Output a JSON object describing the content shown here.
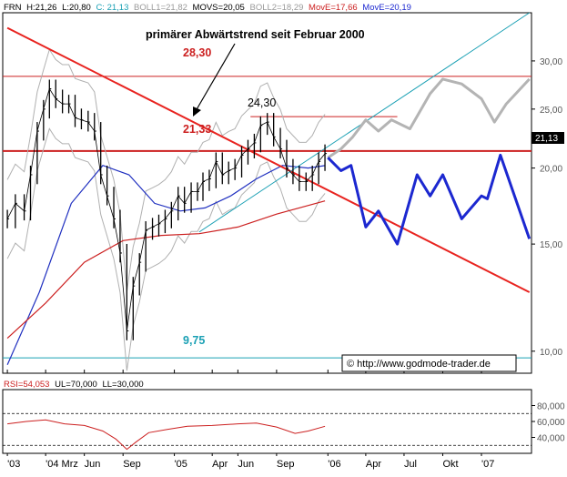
{
  "header": {
    "symbol": "FRN",
    "high": "H:21,26",
    "low": "L:20,80",
    "close": "C: 21,13",
    "boll1": "BOLL1=21,82",
    "movs": "MOVS=20,05",
    "boll2": "BOLL2=18,29",
    "move_a": "MovE=17,66",
    "move_b": "MovE=20,19"
  },
  "annotations": {
    "trend_title": "primärer Abwärtstrend seit Februar 2000",
    "level_2830": "28,30",
    "level_2133": "21,33",
    "level_2430": "24,30",
    "level_975": "9,75",
    "last_price": "21,13",
    "copyright": "© http://www.godmode-trader.de"
  },
  "rsi_header": {
    "rsi": "RSI=54,053",
    "ul": "UL=70,000",
    "ll": "LL=30,000"
  },
  "colors": {
    "trendline": "#e8231f",
    "level_line": "#cc2020",
    "blue_projection": "#1c28d0",
    "gray_projection": "#b4b4b4",
    "teal": "#1aa0b4",
    "ma_blue": "#2030c0",
    "ma_red": "#cc2020",
    "boll": "#b0b0b0"
  },
  "chart_data": [
    {
      "type": "line",
      "panel": "price",
      "scale": "log",
      "ylim": [
        9.2,
        36
      ],
      "y_ticks": [
        "30,00",
        "25,00",
        "20,00",
        "15,00",
        "10,00"
      ],
      "y_tick_values": [
        30,
        25,
        20,
        15,
        10
      ],
      "x_ticks": [
        "'03",
        "'04 Mrz",
        "Jun",
        "Sep",
        "'05",
        "Apr",
        "Jun",
        "Sep",
        "'06",
        "Apr",
        "Jul",
        "Okt",
        "'07"
      ],
      "x_tick_dates": [
        "2003-12-01",
        "2004-03-01",
        "2004-06-01",
        "2004-09-01",
        "2005-01-01",
        "2005-04-01",
        "2005-06-01",
        "2005-09-01",
        "2006-01-01",
        "2006-04-01",
        "2006-07-01",
        "2006-10-01",
        "2007-01-01"
      ],
      "horizontal_levels": [
        28.3,
        21.33,
        9.75
      ],
      "resistance_2430": {
        "value": 24.3,
        "from": "2005-07-01",
        "to": "2006-06-15"
      },
      "price_series": {
        "name": "FRN",
        "points": [
          [
            "2003-12-01",
            16.5
          ],
          [
            "2003-12-20",
            17.5
          ],
          [
            "2004-01-10",
            17.0
          ],
          [
            "2004-01-25",
            19.5
          ],
          [
            "2004-02-10",
            23.0
          ],
          [
            "2004-02-25",
            25.0
          ],
          [
            "2004-03-10",
            27.0
          ],
          [
            "2004-03-25",
            26.0
          ],
          [
            "2004-04-10",
            25.5
          ],
          [
            "2004-04-25",
            25.5
          ],
          [
            "2004-05-10",
            24.2
          ],
          [
            "2004-05-25",
            24.0
          ],
          [
            "2004-06-10",
            23.8
          ],
          [
            "2004-06-25",
            23.0
          ],
          [
            "2004-07-10",
            19.5
          ],
          [
            "2004-07-25",
            18.0
          ],
          [
            "2004-08-10",
            16.5
          ],
          [
            "2004-08-25",
            14.5
          ],
          [
            "2004-09-10",
            10.8
          ],
          [
            "2004-09-25",
            12.8
          ],
          [
            "2004-10-10",
            14.0
          ],
          [
            "2004-10-25",
            15.8
          ],
          [
            "2004-11-10",
            16.0
          ],
          [
            "2004-11-25",
            16.2
          ],
          [
            "2004-12-10",
            16.5
          ],
          [
            "2004-12-25",
            17.0
          ],
          [
            "2005-01-10",
            18.0
          ],
          [
            "2005-01-25",
            17.5
          ],
          [
            "2005-02-10",
            18.3
          ],
          [
            "2005-02-25",
            18.3
          ],
          [
            "2005-03-10",
            19.0
          ],
          [
            "2005-03-25",
            19.2
          ],
          [
            "2005-04-10",
            20.5
          ],
          [
            "2005-04-25",
            19.5
          ],
          [
            "2005-05-10",
            19.8
          ],
          [
            "2005-05-25",
            20.0
          ],
          [
            "2005-06-10",
            21.0
          ],
          [
            "2005-06-25",
            21.5
          ],
          [
            "2005-07-10",
            22.0
          ],
          [
            "2005-07-25",
            23.5
          ],
          [
            "2005-08-10",
            23.8
          ],
          [
            "2005-08-25",
            22.5
          ],
          [
            "2005-09-10",
            21.5
          ],
          [
            "2005-09-25",
            20.0
          ],
          [
            "2005-10-10",
            19.5
          ],
          [
            "2005-10-25",
            19.0
          ],
          [
            "2005-11-10",
            19.0
          ],
          [
            "2005-11-25",
            19.5
          ],
          [
            "2005-12-10",
            20.5
          ],
          [
            "2005-12-25",
            21.13
          ]
        ]
      },
      "moving_averages": [
        {
          "color": "blue",
          "points": [
            [
              "2003-12-01",
              9.5
            ],
            [
              "2004-02-15",
              12.5
            ],
            [
              "2004-05-01",
              17.5
            ],
            [
              "2004-07-15",
              20.2
            ],
            [
              "2004-09-15",
              19.5
            ],
            [
              "2004-11-15",
              17.5
            ],
            [
              "2005-01-15",
              17.0
            ],
            [
              "2005-03-15",
              17.2
            ],
            [
              "2005-05-15",
              18.0
            ],
            [
              "2005-07-15",
              19.2
            ],
            [
              "2005-09-15",
              20.2
            ],
            [
              "2005-11-15",
              20.0
            ],
            [
              "2005-12-25",
              20.19
            ]
          ]
        },
        {
          "color": "red",
          "points": [
            [
              "2003-12-01",
              10.5
            ],
            [
              "2004-03-01",
              12.0
            ],
            [
              "2004-06-01",
              14.0
            ],
            [
              "2004-09-01",
              15.2
            ],
            [
              "2004-12-01",
              15.5
            ],
            [
              "2005-03-01",
              15.6
            ],
            [
              "2005-06-01",
              16.0
            ],
            [
              "2005-09-01",
              16.8
            ],
            [
              "2005-12-25",
              17.66
            ]
          ]
        }
      ],
      "projection_blue": [
        [
          "2006-01-01",
          20.8
        ],
        [
          "2006-02-01",
          19.8
        ],
        [
          "2006-02-25",
          20.2
        ],
        [
          "2006-04-01",
          16.0
        ],
        [
          "2006-05-01",
          17.0
        ],
        [
          "2006-06-15",
          15.0
        ],
        [
          "2006-08-01",
          19.5
        ],
        [
          "2006-09-01",
          18.0
        ],
        [
          "2006-10-01",
          19.5
        ],
        [
          "2006-11-15",
          16.5
        ],
        [
          "2007-01-01",
          18.0
        ],
        [
          "2007-01-15",
          17.8
        ],
        [
          "2007-02-15",
          21.0
        ],
        [
          "2007-04-25",
          15.3
        ]
      ],
      "projection_gray": [
        [
          "2006-01-01",
          20.8
        ],
        [
          "2006-02-01",
          21.5
        ],
        [
          "2006-03-01",
          22.5
        ],
        [
          "2006-04-01",
          24.0
        ],
        [
          "2006-05-01",
          23.0
        ],
        [
          "2006-06-01",
          24.0
        ],
        [
          "2006-07-15",
          23.2
        ],
        [
          "2006-09-01",
          26.5
        ],
        [
          "2006-10-01",
          28.0
        ],
        [
          "2006-11-15",
          27.5
        ],
        [
          "2007-01-01",
          26.0
        ],
        [
          "2007-02-01",
          23.8
        ],
        [
          "2007-03-01",
          25.5
        ],
        [
          "2007-04-25",
          28.0
        ]
      ],
      "trendlines": {
        "red_down": {
          "from": [
            "2003-12-01",
            34.0
          ],
          "to": [
            "2007-04-25",
            12.5
          ]
        },
        "teal_up": {
          "from": [
            "2005-03-01",
            15.7
          ],
          "to": [
            "2007-04-25",
            36.0
          ]
        }
      }
    },
    {
      "type": "line",
      "panel": "rsi",
      "ylim": [
        20,
        100
      ],
      "y_ticks": [
        "80,000",
        "60,000",
        "40,000"
      ],
      "y_tick_values": [
        80,
        60,
        40
      ],
      "upper_limit": 70,
      "lower_limit": 30,
      "series": {
        "name": "RSI",
        "points": [
          [
            "2003-12-01",
            57
          ],
          [
            "2004-01-15",
            60
          ],
          [
            "2004-03-01",
            62
          ],
          [
            "2004-04-15",
            57
          ],
          [
            "2004-06-01",
            55
          ],
          [
            "2004-07-15",
            48
          ],
          [
            "2004-08-15",
            38
          ],
          [
            "2004-09-10",
            25
          ],
          [
            "2004-10-01",
            34
          ],
          [
            "2004-11-01",
            46
          ],
          [
            "2004-12-15",
            50
          ],
          [
            "2005-02-01",
            54
          ],
          [
            "2005-04-01",
            55
          ],
          [
            "2005-06-01",
            57
          ],
          [
            "2005-07-15",
            58
          ],
          [
            "2005-09-01",
            53
          ],
          [
            "2005-10-15",
            45
          ],
          [
            "2005-11-15",
            48
          ],
          [
            "2005-12-25",
            54
          ]
        ]
      }
    }
  ]
}
